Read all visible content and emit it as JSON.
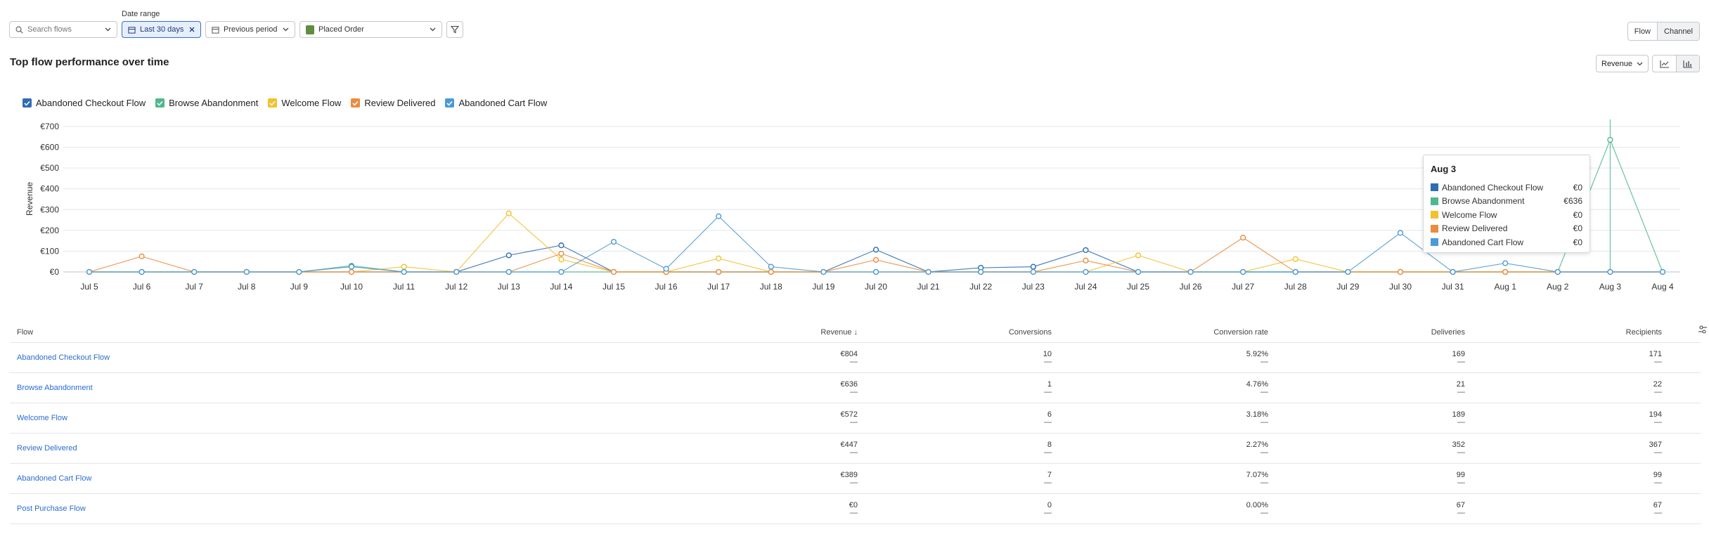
{
  "toolbar": {
    "search_placeholder": "Search flows",
    "date_range_label": "Date range",
    "date_range_value": "Last 30 days",
    "comparison_value": "Previous period",
    "metric_value": "Placed Order"
  },
  "view_toggle": {
    "flow": "Flow",
    "channel": "Channel"
  },
  "section_title": "Top flow performance over time",
  "metric_select": "Revenue",
  "colors": {
    "abandoned_checkout": "#2f6cb3",
    "browse_abandonment": "#4fb88c",
    "welcome": "#f2c12e",
    "review_delivered": "#ea8c3f",
    "abandoned_cart": "#4c9ad8",
    "link": "#2b6cd0",
    "accent": "#2f6fd6"
  },
  "chart_data": {
    "type": "line",
    "ylabel": "Revenue",
    "ylim": [
      0,
      700
    ],
    "yticks": [
      "€0",
      "€100",
      "€200",
      "€300",
      "€400",
      "€500",
      "€600",
      "€700"
    ],
    "x": [
      "Jul 5",
      "Jul 6",
      "Jul 7",
      "Jul 8",
      "Jul 9",
      "Jul 10",
      "Jul 11",
      "Jul 12",
      "Jul 13",
      "Jul 14",
      "Jul 15",
      "Jul 16",
      "Jul 17",
      "Jul 18",
      "Jul 19",
      "Jul 20",
      "Jul 21",
      "Jul 22",
      "Jul 23",
      "Jul 24",
      "Jul 25",
      "Jul 26",
      "Jul 27",
      "Jul 28",
      "Jul 29",
      "Jul 30",
      "Jul 31",
      "Aug 1",
      "Aug 2",
      "Aug 3",
      "Aug 4"
    ],
    "series": [
      {
        "name": "Abandoned Checkout Flow",
        "color": "#2f6cb3",
        "values": [
          0,
          0,
          0,
          0,
          0,
          0,
          0,
          0,
          80,
          128,
          0,
          0,
          0,
          0,
          0,
          107,
          0,
          20,
          25,
          105,
          0,
          0,
          0,
          0,
          0,
          0,
          0,
          0,
          0,
          0,
          0
        ]
      },
      {
        "name": "Browse Abandonment",
        "color": "#4fb88c",
        "values": [
          0,
          0,
          0,
          0,
          0,
          30,
          0,
          0,
          0,
          0,
          0,
          0,
          0,
          0,
          0,
          0,
          0,
          0,
          0,
          0,
          0,
          0,
          0,
          0,
          0,
          0,
          0,
          0,
          0,
          636,
          0
        ]
      },
      {
        "name": "Welcome Flow",
        "color": "#f2c12e",
        "values": [
          0,
          0,
          0,
          0,
          0,
          0,
          25,
          0,
          282,
          60,
          0,
          0,
          65,
          0,
          0,
          0,
          0,
          0,
          0,
          0,
          80,
          0,
          0,
          62,
          0,
          0,
          0,
          0,
          0,
          0,
          0
        ]
      },
      {
        "name": "Review Delivered",
        "color": "#ea8c3f",
        "values": [
          0,
          75,
          0,
          0,
          0,
          0,
          0,
          0,
          0,
          88,
          0,
          0,
          0,
          0,
          0,
          58,
          0,
          0,
          0,
          55,
          0,
          0,
          165,
          0,
          0,
          0,
          0,
          0,
          0,
          0,
          0
        ]
      },
      {
        "name": "Abandoned Cart Flow",
        "color": "#4c9ad8",
        "values": [
          0,
          0,
          0,
          0,
          0,
          25,
          0,
          0,
          0,
          0,
          145,
          15,
          268,
          25,
          0,
          0,
          0,
          0,
          0,
          0,
          0,
          0,
          0,
          0,
          0,
          188,
          0,
          42,
          0,
          0,
          0
        ]
      }
    ],
    "legend": "top-left",
    "grid": true
  },
  "tooltip": {
    "title": "Aug 3",
    "rows": [
      {
        "label": "Abandoned Checkout Flow",
        "value": "€0",
        "color": "#2f6cb3"
      },
      {
        "label": "Browse Abandonment",
        "value": "€636",
        "color": "#4fb88c"
      },
      {
        "label": "Welcome Flow",
        "value": "€0",
        "color": "#f2c12e"
      },
      {
        "label": "Review Delivered",
        "value": "€0",
        "color": "#ea8c3f"
      },
      {
        "label": "Abandoned Cart Flow",
        "value": "€0",
        "color": "#4c9ad8"
      }
    ]
  },
  "table": {
    "headers": {
      "flow": "Flow",
      "revenue": "Revenue ↓",
      "conversions": "Conversions",
      "conversion_rate": "Conversion rate",
      "deliveries": "Deliveries",
      "recipients": "Recipients"
    },
    "dash": "—",
    "rows": [
      {
        "flow": "Abandoned Checkout Flow",
        "revenue": "€804",
        "conversions": "10",
        "conversion_rate": "5.92%",
        "deliveries": "169",
        "recipients": "171"
      },
      {
        "flow": "Browse Abandonment",
        "revenue": "€636",
        "conversions": "1",
        "conversion_rate": "4.76%",
        "deliveries": "21",
        "recipients": "22"
      },
      {
        "flow": "Welcome Flow",
        "revenue": "€572",
        "conversions": "6",
        "conversion_rate": "3.18%",
        "deliveries": "189",
        "recipients": "194"
      },
      {
        "flow": "Review Delivered",
        "revenue": "€447",
        "conversions": "8",
        "conversion_rate": "2.27%",
        "deliveries": "352",
        "recipients": "367"
      },
      {
        "flow": "Abandoned Cart Flow",
        "revenue": "€389",
        "conversions": "7",
        "conversion_rate": "7.07%",
        "deliveries": "99",
        "recipients": "99"
      },
      {
        "flow": "Post Purchase Flow",
        "revenue": "€0",
        "conversions": "0",
        "conversion_rate": "0.00%",
        "deliveries": "67",
        "recipients": "67"
      }
    ]
  }
}
